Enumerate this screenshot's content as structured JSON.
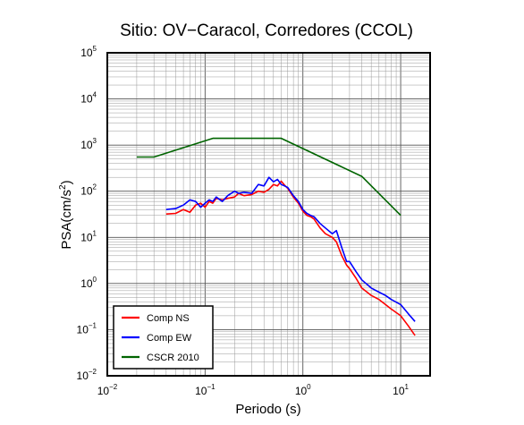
{
  "chart_data": {
    "type": "line",
    "title": "Sitio: OV−Caracol, Corredores (CCOL)",
    "xlabel": "Periodo (s)",
    "ylabel_main": "PSA(cm/s",
    "ylabel_sup": "2",
    "ylabel_close": ")",
    "x_scale": "log",
    "y_scale": "log",
    "xlim": [
      0.01,
      20
    ],
    "ylim": [
      0.01,
      100000
    ],
    "grid": true,
    "legend_position": "bottom-left",
    "x_ticks": [
      {
        "base": "10",
        "exp": "−2"
      },
      {
        "base": "10",
        "exp": "−1"
      },
      {
        "base": "10",
        "exp": "0"
      },
      {
        "base": "10",
        "exp": "1"
      }
    ],
    "y_ticks": [
      {
        "base": "10",
        "exp": "−2"
      },
      {
        "base": "10",
        "exp": "−1"
      },
      {
        "base": "10",
        "exp": "0"
      },
      {
        "base": "10",
        "exp": "1"
      },
      {
        "base": "10",
        "exp": "2"
      },
      {
        "base": "10",
        "exp": "3"
      },
      {
        "base": "10",
        "exp": "4"
      },
      {
        "base": "10",
        "exp": "5"
      }
    ],
    "series": [
      {
        "name": "Comp NS",
        "color": "#ff0000",
        "x": [
          0.04,
          0.05,
          0.06,
          0.07,
          0.08,
          0.09,
          0.1,
          0.11,
          0.12,
          0.13,
          0.15,
          0.17,
          0.2,
          0.22,
          0.25,
          0.3,
          0.35,
          0.4,
          0.45,
          0.5,
          0.55,
          0.6,
          0.65,
          0.7,
          0.8,
          0.9,
          1.0,
          1.1,
          1.2,
          1.3,
          1.5,
          1.7,
          2.0,
          2.2,
          2.5,
          2.8,
          3.0,
          3.5,
          4.0,
          5.0,
          6.0,
          7.0,
          8.0,
          10.0,
          12.0,
          14.0
        ],
        "y": [
          32,
          33,
          40,
          35,
          50,
          55,
          45,
          60,
          55,
          70,
          65,
          70,
          75,
          90,
          80,
          85,
          100,
          95,
          110,
          140,
          130,
          165,
          135,
          115,
          75,
          55,
          37,
          30,
          28,
          25,
          16,
          12,
          10,
          8,
          4,
          2.5,
          2.1,
          1.3,
          0.8,
          0.55,
          0.45,
          0.35,
          0.28,
          0.2,
          0.12,
          0.075
        ]
      },
      {
        "name": "Comp EW",
        "color": "#0000ff",
        "x": [
          0.04,
          0.05,
          0.06,
          0.07,
          0.08,
          0.09,
          0.1,
          0.11,
          0.12,
          0.13,
          0.15,
          0.17,
          0.2,
          0.22,
          0.25,
          0.3,
          0.35,
          0.4,
          0.45,
          0.5,
          0.55,
          0.6,
          0.65,
          0.7,
          0.8,
          0.9,
          1.0,
          1.1,
          1.2,
          1.3,
          1.5,
          1.7,
          2.0,
          2.2,
          2.5,
          2.8,
          3.0,
          3.5,
          4.0,
          5.0,
          6.0,
          7.0,
          8.0,
          10.0,
          12.0,
          14.0
        ],
        "y": [
          40,
          42,
          50,
          65,
          60,
          45,
          55,
          65,
          60,
          75,
          60,
          80,
          100,
          90,
          95,
          90,
          140,
          130,
          200,
          160,
          180,
          140,
          130,
          120,
          80,
          60,
          40,
          33,
          30,
          28,
          20,
          16,
          12,
          14,
          6,
          3,
          3,
          1.8,
          1.2,
          0.8,
          0.65,
          0.55,
          0.45,
          0.35,
          0.22,
          0.15
        ]
      },
      {
        "name": "CSCR 2010",
        "color": "#006400",
        "x": [
          0.02,
          0.03,
          0.12,
          0.6,
          4.0,
          10.0
        ],
        "y": [
          550,
          550,
          1400,
          1400,
          210,
          30
        ]
      }
    ]
  }
}
